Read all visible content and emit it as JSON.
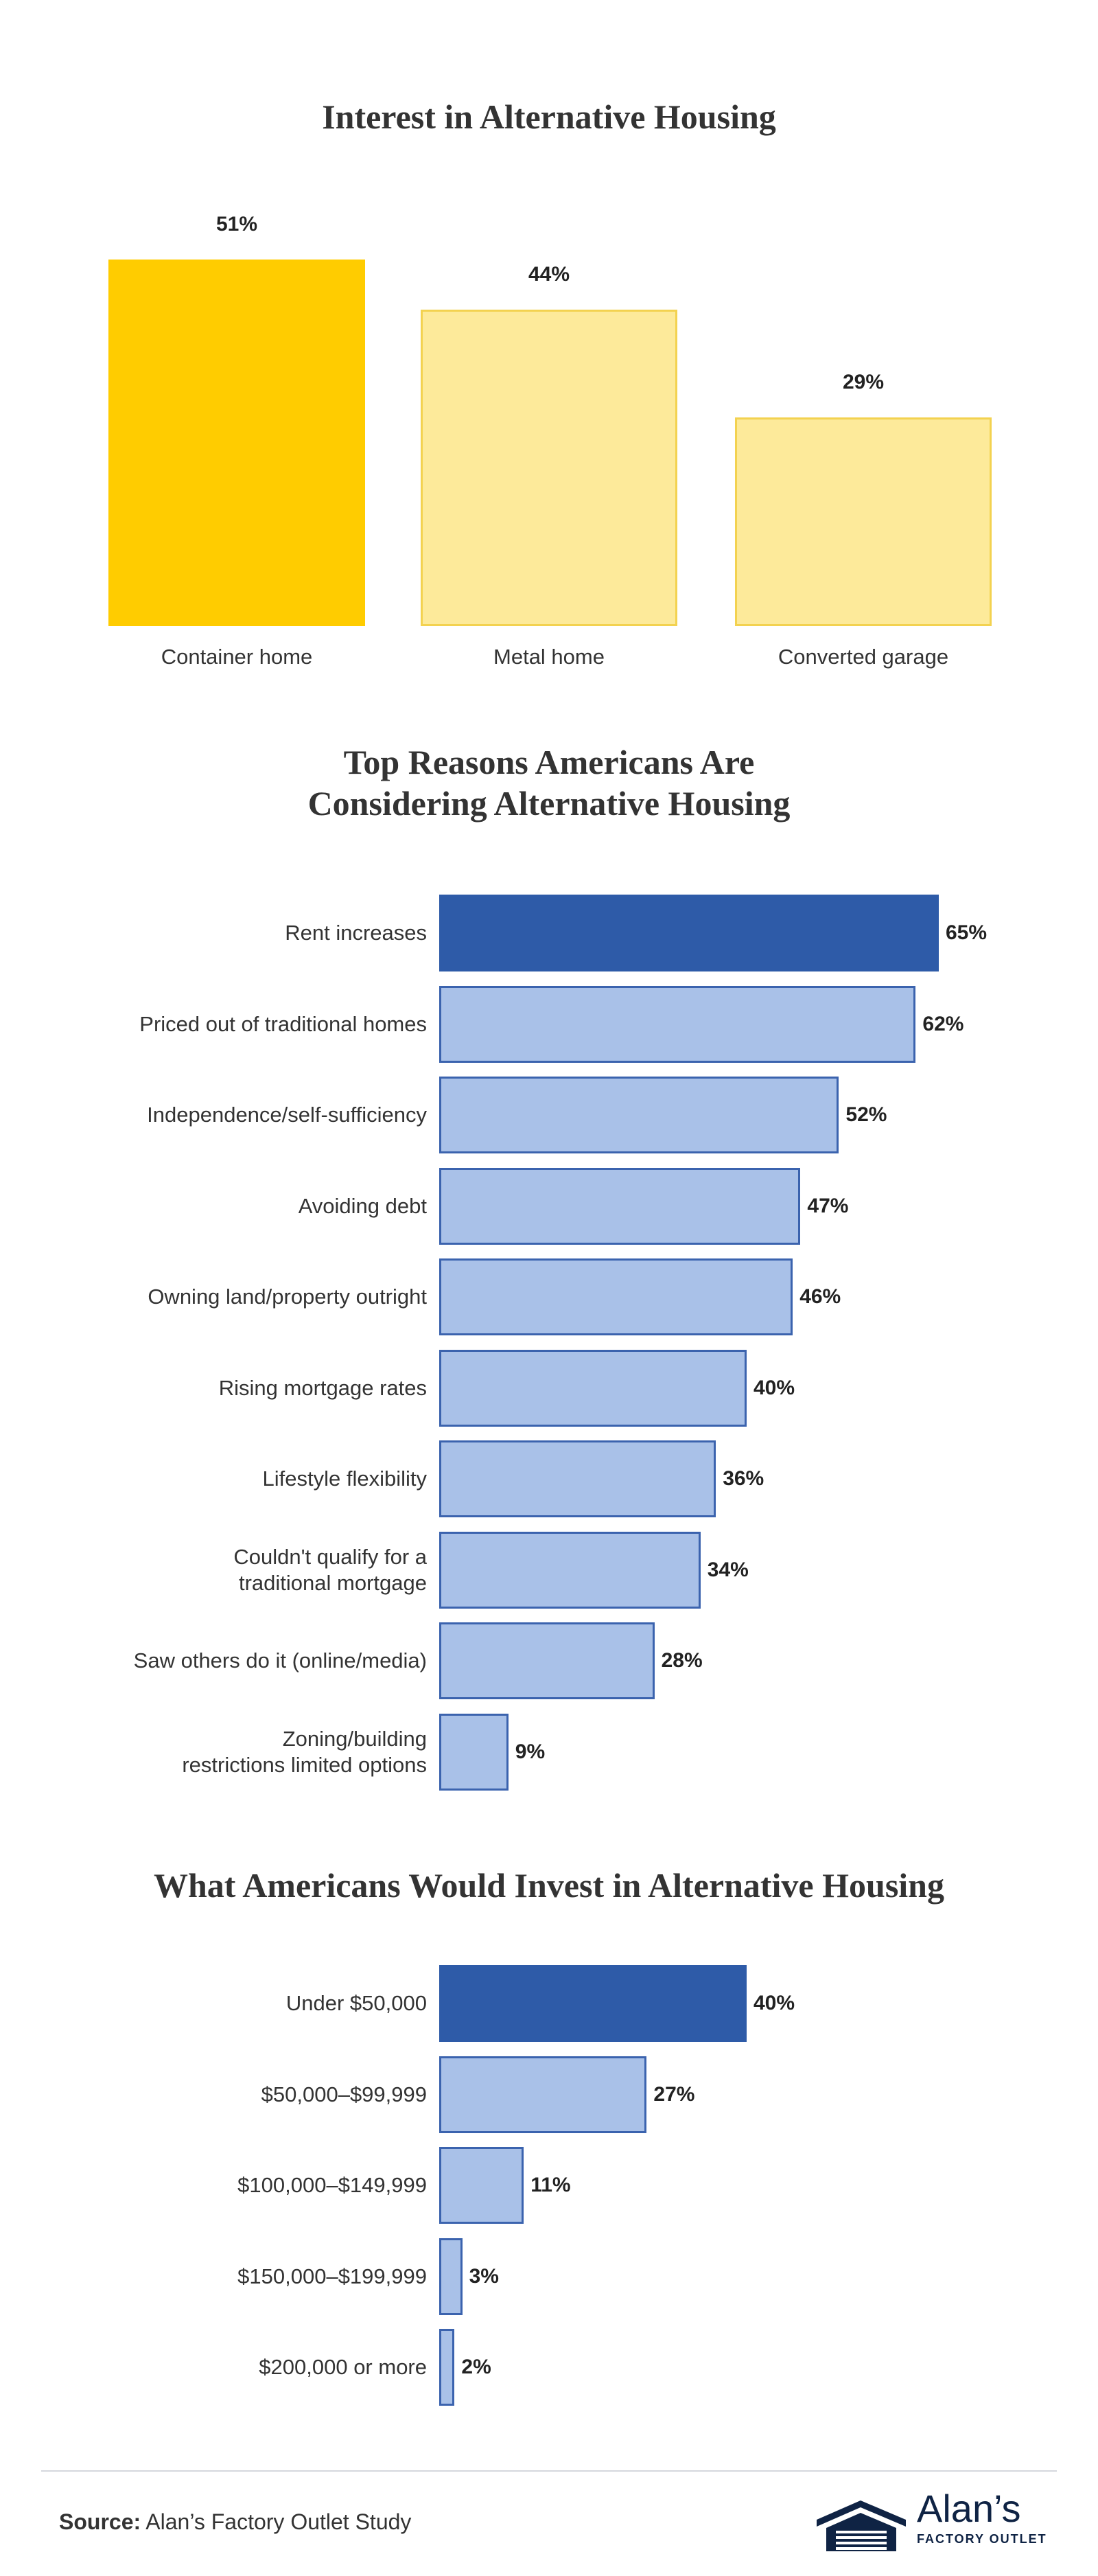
{
  "chart_data": [
    {
      "type": "bar",
      "orientation": "vertical",
      "title": "Interest in Alternative Housing",
      "categories": [
        "Container home",
        "Metal home",
        "Converted garage"
      ],
      "values": [
        51,
        44,
        29
      ],
      "value_labels": [
        "51%",
        "44%",
        "29%"
      ],
      "colors": [
        "#ffcc00",
        "#fdea9a",
        "#fdea9a"
      ],
      "border_colors": [
        "#ffcc00",
        "#f3d250",
        "#f3d250"
      ]
    },
    {
      "type": "bar",
      "orientation": "horizontal",
      "title": "Top Reasons Americans Are\nConsidering Alternative Housing",
      "categories": [
        "Rent increases",
        "Priced out of traditional homes",
        "Independence/self-sufficiency",
        "Avoiding debt",
        "Owning land/property outright",
        "Rising mortgage rates",
        "Lifestyle flexibility",
        "Couldn't qualify for a\ntraditional mortgage",
        "Saw others do it (online/media)",
        "Zoning/building\nrestrictions limited options"
      ],
      "values": [
        65,
        62,
        52,
        47,
        46,
        40,
        36,
        34,
        28,
        9
      ],
      "value_labels": [
        "65%",
        "62%",
        "52%",
        "47%",
        "46%",
        "40%",
        "36%",
        "34%",
        "28%",
        "9%"
      ],
      "colors": [
        "#2e5ba8",
        "#a9c1e8",
        "#a9c1e8",
        "#a9c1e8",
        "#a9c1e8",
        "#a9c1e8",
        "#a9c1e8",
        "#a9c1e8",
        "#a9c1e8",
        "#a9c1e8"
      ],
      "border_colors": [
        "#2e5ba8",
        "#3b63ae",
        "#3b63ae",
        "#3b63ae",
        "#3b63ae",
        "#3b63ae",
        "#3b63ae",
        "#3b63ae",
        "#3b63ae",
        "#3b63ae"
      ]
    },
    {
      "type": "bar",
      "orientation": "horizontal",
      "title": "What Americans Would Invest in Alternative Housing",
      "categories": [
        "Under $50,000",
        "$50,000–$99,999",
        "$100,000–$149,999",
        "$150,000–$199,999",
        "$200,000 or more"
      ],
      "values": [
        40,
        27,
        11,
        3,
        2
      ],
      "value_labels": [
        "40%",
        "27%",
        "11%",
        "3%",
        "2%"
      ],
      "colors": [
        "#2e5ba8",
        "#a9c1e8",
        "#a9c1e8",
        "#a9c1e8",
        "#a9c1e8"
      ],
      "border_colors": [
        "#2e5ba8",
        "#3b63ae",
        "#3b63ae",
        "#3b63ae",
        "#3b63ae"
      ]
    }
  ],
  "footer": {
    "source_label": "Source:",
    "source": "Alan’s Factory Outlet Study",
    "logo": {
      "name": "Alan’s",
      "tagline": "FACTORY OUTLET"
    }
  }
}
